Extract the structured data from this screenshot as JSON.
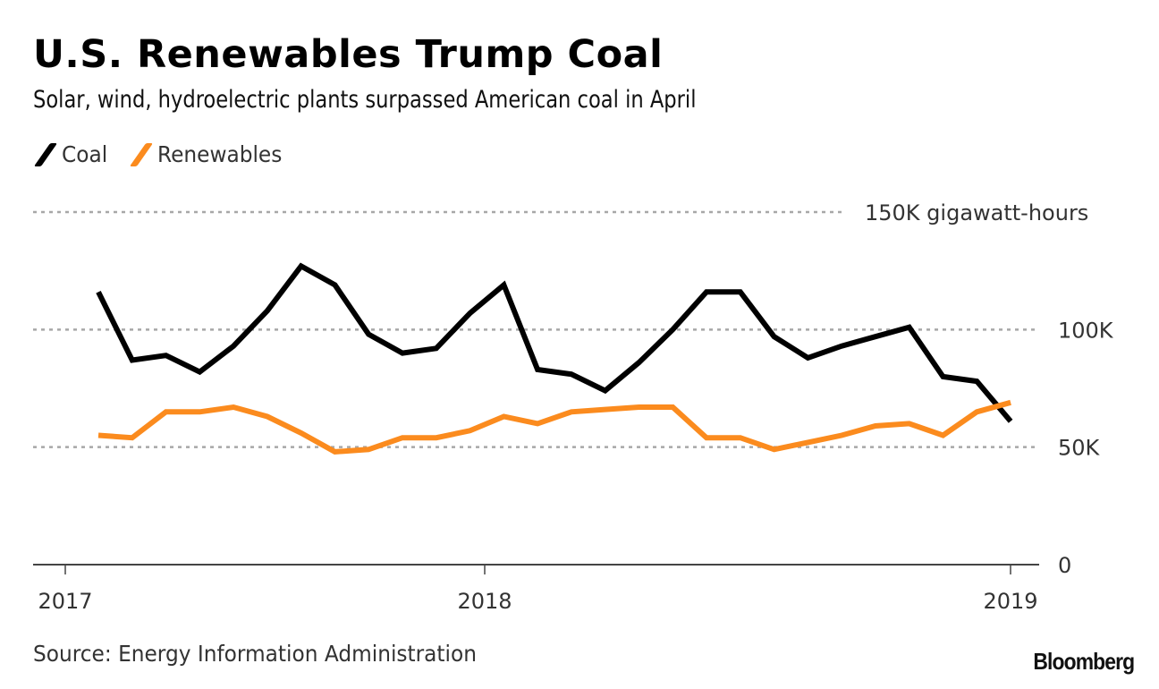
{
  "header": {
    "title": "U.S. Renewables Trump Coal",
    "subtitle": "Solar, wind, hydroelectric plants surpassed American coal in April"
  },
  "footer": {
    "source": "Source: Energy Information Administration",
    "brand": "Bloomberg"
  },
  "chart_data": {
    "type": "line",
    "title": "U.S. Renewables Trump Coal",
    "subtitle": "Solar, wind, hydroelectric plants surpassed American coal in April",
    "xlabel": "",
    "ylabel": "gigawatt-hours",
    "ylim": [
      0,
      150000
    ],
    "yticks": [
      {
        "value": 0,
        "label": "0"
      },
      {
        "value": 50000,
        "label": "50K"
      },
      {
        "value": 100000,
        "label": "100K"
      },
      {
        "value": 150000,
        "label": "150K gigawatt-hours"
      }
    ],
    "xticks": [
      {
        "index": -1,
        "label": "2017"
      },
      {
        "index": 11.5,
        "label": "2018"
      },
      {
        "index": 27,
        "label": "2019"
      }
    ],
    "grid": true,
    "legend": "top-left",
    "series": [
      {
        "name": "Coal",
        "color": "#000000",
        "values": [
          116000,
          87000,
          89000,
          82000,
          93000,
          108000,
          127000,
          119000,
          98000,
          90000,
          92000,
          107000,
          119000,
          83000,
          81000,
          74000,
          86000,
          100000,
          116000,
          116000,
          97000,
          88000,
          93000,
          97000,
          101000,
          80000,
          78000,
          61000
        ]
      },
      {
        "name": "Renewables",
        "color": "#fb8b1e",
        "values": [
          55000,
          54000,
          65000,
          65000,
          67000,
          63000,
          56000,
          48000,
          49000,
          54000,
          54000,
          57000,
          63000,
          60000,
          65000,
          66000,
          67000,
          67000,
          54000,
          54000,
          49000,
          52000,
          55000,
          59000,
          60000,
          55000,
          65000,
          69000
        ]
      }
    ]
  }
}
